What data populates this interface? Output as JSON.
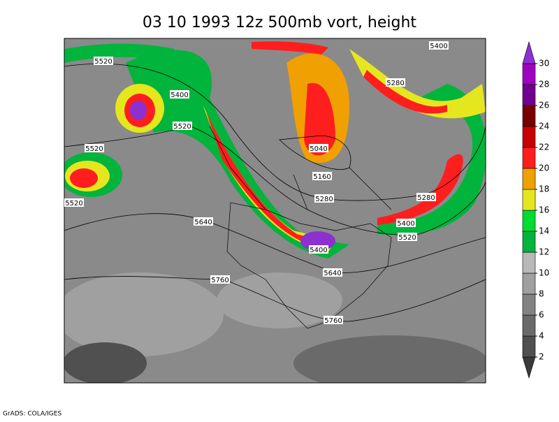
{
  "title": "03 10 1993 12z 500mb vort, height",
  "colorbar": {
    "ticks": [
      2,
      4,
      6,
      8,
      10,
      12,
      14,
      16,
      18,
      20,
      22,
      24,
      26,
      28,
      30
    ],
    "colors": [
      "#3a3a3a",
      "#505050",
      "#6a6a6a",
      "#828282",
      "#a0a0a0",
      "#b8b8b8",
      "#00b43c",
      "#00dc32",
      "#e6e61e",
      "#f0a000",
      "#ff1e1e",
      "#c80000",
      "#780000",
      "#700090",
      "#a000c0",
      "#e630e6",
      "#8c30d0"
    ]
  },
  "contour_labels": [
    "5400",
    "5520",
    "5400",
    "5280",
    "5520",
    "5520",
    "5040",
    "5160",
    "5520",
    "5280",
    "5280",
    "5640",
    "5400",
    "5520",
    "5400",
    "5640",
    "5760",
    "5760"
  ],
  "credit": "GrADS: COLA/IGES"
}
